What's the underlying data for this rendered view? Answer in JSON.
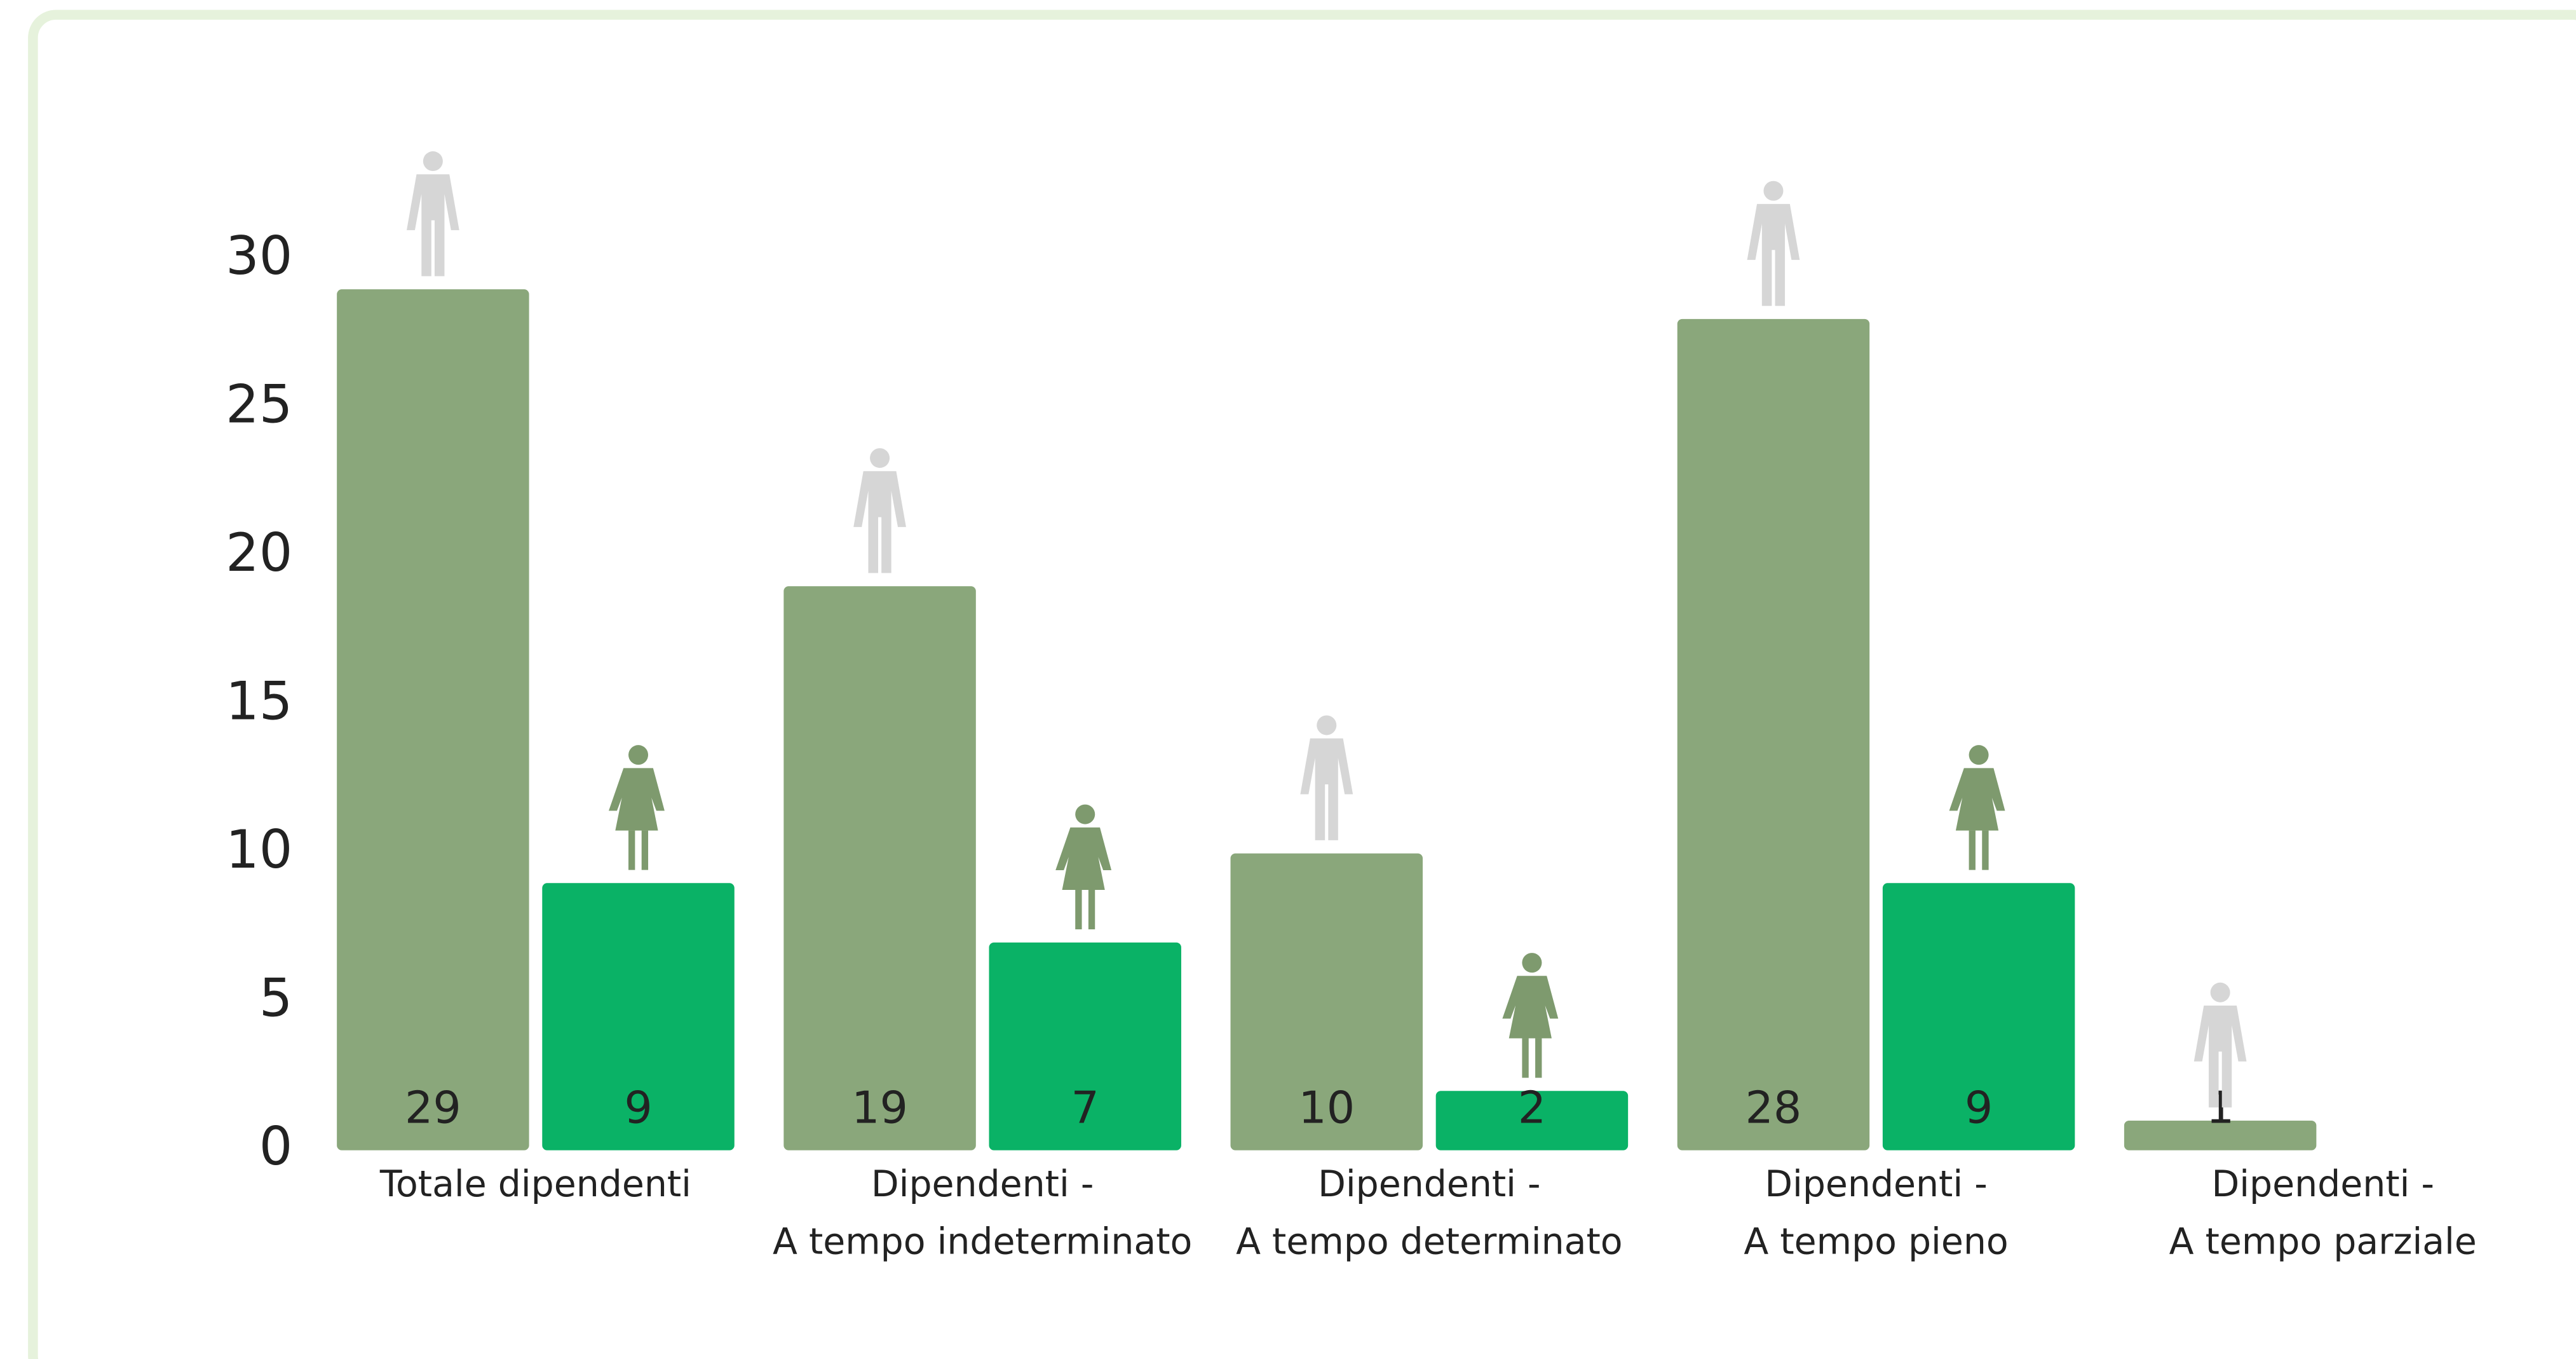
{
  "chart_data": {
    "type": "bar",
    "categories": [
      [
        "Totale dipendenti"
      ],
      [
        "Dipendenti -",
        "A tempo indeterminato"
      ],
      [
        "Dipendenti -",
        "A tempo determinato"
      ],
      [
        "Dipendenti -",
        "A tempo pieno"
      ],
      [
        "Dipendenti -",
        "A tempo parziale"
      ]
    ],
    "series": [
      {
        "color": "#8aa77b",
        "values": [
          29,
          19,
          10,
          28,
          1
        ]
      },
      {
        "color": "#0ab266",
        "values": [
          9,
          7,
          2,
          9,
          null
        ]
      }
    ],
    "ylim": [
      0,
      30
    ],
    "yticks": [
      0,
      5,
      10,
      15,
      20,
      25,
      30
    ],
    "grid": false
  }
}
